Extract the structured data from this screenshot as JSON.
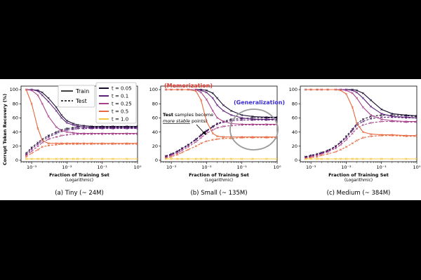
{
  "figure": {
    "ylabel": "Corrupt Token Recovery (%)",
    "legend_split": {
      "train": "Train",
      "test": "Test"
    },
    "legend_t": [
      "t = 0.05",
      "t = 0.1",
      "t = 0.25",
      "t = 0.5",
      "t = 1.0"
    ],
    "annotations": {
      "memorization": "(Memorization)",
      "generalization": "(Generalization)",
      "test_note_line1_bold": "Test",
      "test_note_line1_rest": " samples become",
      "test_note_line2_italic": "more stable",
      "test_note_line2_rest": " points!"
    }
  },
  "chart_data": [
    {
      "type": "line",
      "caption": "(a) Tiny (~ 24M)",
      "xlabel": "Fraction of Training Set",
      "xlabel_sub": "(Logarithmic)",
      "xscale": "log",
      "xlim": [
        0.0005,
        1
      ],
      "ylim": [
        -2,
        105
      ],
      "xtick_labels": [
        "10⁻³",
        "10⁻²",
        "10⁻¹",
        "10⁰"
      ],
      "ytick_labels": [
        "0",
        "20",
        "40",
        "60",
        "80",
        "100"
      ],
      "x": [
        0.0007,
        0.001,
        0.0015,
        0.002,
        0.003,
        0.005,
        0.007,
        0.01,
        0.015,
        0.02,
        0.03,
        0.05,
        0.1,
        0.2,
        0.5,
        1.0
      ],
      "series": [
        {
          "name": "t = 0.05",
          "split": "Train",
          "color": "#1a0b2e",
          "values": [
            100,
            100,
            99,
            96,
            88,
            75,
            64,
            56,
            52,
            50,
            49,
            48,
            48,
            48,
            48,
            48
          ]
        },
        {
          "name": "t = 0.05",
          "split": "Test",
          "color": "#1a0b2e",
          "values": [
            10,
            18,
            25,
            30,
            35,
            40,
            43,
            45,
            46,
            47,
            47,
            47,
            47,
            47,
            47,
            47
          ]
        },
        {
          "name": "t = 0.1",
          "split": "Train",
          "color": "#5c1f7a",
          "values": [
            100,
            100,
            98,
            92,
            83,
            70,
            60,
            53,
            50,
            48,
            47,
            46,
            46,
            46,
            46,
            46
          ]
        },
        {
          "name": "t = 0.1",
          "split": "Test",
          "color": "#5c1f7a",
          "values": [
            8,
            16,
            23,
            28,
            33,
            38,
            41,
            43,
            44,
            45,
            45,
            45,
            45,
            45,
            45,
            45
          ]
        },
        {
          "name": "t = 0.25",
          "split": "Train",
          "color": "#a8418a",
          "values": [
            100,
            99,
            92,
            80,
            62,
            47,
            42,
            40,
            39,
            38,
            38,
            38,
            38,
            38,
            38,
            38
          ]
        },
        {
          "name": "t = 0.25",
          "split": "Test",
          "color": "#a8418a",
          "values": [
            7,
            13,
            20,
            25,
            30,
            33,
            35,
            36,
            37,
            37,
            37,
            37,
            37,
            37,
            37,
            37
          ]
        },
        {
          "name": "t = 0.5",
          "split": "Train",
          "color": "#e8683f",
          "values": [
            100,
            80,
            45,
            28,
            24,
            24,
            24,
            24,
            24,
            24,
            24,
            24,
            24,
            24,
            24,
            24
          ]
        },
        {
          "name": "t = 0.5",
          "split": "Test",
          "color": "#e8683f",
          "values": [
            5,
            10,
            15,
            19,
            21,
            22,
            23,
            23,
            23,
            23,
            23,
            23,
            23,
            23,
            23,
            23
          ]
        },
        {
          "name": "t = 1.0",
          "split": "Train",
          "color": "#f5c842",
          "values": [
            2,
            2,
            2,
            2,
            2,
            2,
            2,
            2,
            2,
            2,
            2,
            2,
            2,
            2,
            2,
            2
          ]
        },
        {
          "name": "t = 1.0",
          "split": "Test",
          "color": "#f5c842",
          "values": [
            2,
            2,
            2,
            2,
            2,
            2,
            2,
            2,
            2,
            2,
            2,
            2,
            2,
            2,
            2,
            2
          ]
        }
      ]
    },
    {
      "type": "line",
      "caption": "(b) Small (~ 135M)",
      "xlabel": "Fraction of Training Set",
      "xlabel_sub": "(Logarithmic)",
      "xscale": "log",
      "xlim": [
        0.0005,
        1
      ],
      "ylim": [
        -2,
        105
      ],
      "xtick_labels": [
        "10⁻³",
        "10⁻²",
        "10⁻¹",
        "10⁰"
      ],
      "ytick_labels": [
        "0",
        "20",
        "40",
        "60",
        "80",
        "100"
      ],
      "x": [
        0.0007,
        0.001,
        0.0015,
        0.002,
        0.003,
        0.005,
        0.007,
        0.01,
        0.015,
        0.02,
        0.03,
        0.05,
        0.1,
        0.2,
        0.5,
        1.0
      ],
      "series": [
        {
          "name": "t = 0.05",
          "split": "Train",
          "color": "#1a0b2e",
          "values": [
            100,
            100,
            100,
            100,
            100,
            100,
            100,
            99,
            95,
            88,
            78,
            70,
            64,
            62,
            61,
            61
          ]
        },
        {
          "name": "t = 0.05",
          "split": "Test",
          "color": "#1a0b2e",
          "values": [
            6,
            9,
            13,
            17,
            22,
            30,
            36,
            42,
            48,
            52,
            55,
            58,
            59,
            60,
            60,
            60
          ]
        },
        {
          "name": "t = 0.1",
          "split": "Train",
          "color": "#5c1f7a",
          "values": [
            100,
            100,
            100,
            100,
            100,
            100,
            99,
            96,
            88,
            78,
            70,
            64,
            60,
            58,
            58,
            58
          ]
        },
        {
          "name": "t = 0.1",
          "split": "Test",
          "color": "#5c1f7a",
          "values": [
            5,
            8,
            12,
            16,
            21,
            29,
            35,
            41,
            47,
            51,
            54,
            56,
            57,
            57,
            57,
            57
          ]
        },
        {
          "name": "t = 0.25",
          "split": "Train",
          "color": "#a8418a",
          "values": [
            100,
            100,
            100,
            100,
            100,
            100,
            96,
            86,
            70,
            60,
            55,
            52,
            51,
            51,
            51,
            51
          ]
        },
        {
          "name": "t = 0.25",
          "split": "Test",
          "color": "#a8418a",
          "values": [
            4,
            7,
            10,
            14,
            19,
            26,
            32,
            38,
            43,
            46,
            48,
            49,
            50,
            50,
            50,
            50
          ]
        },
        {
          "name": "t = 0.5",
          "split": "Train",
          "color": "#e8683f",
          "values": [
            100,
            100,
            100,
            100,
            100,
            98,
            85,
            55,
            38,
            34,
            33,
            33,
            33,
            33,
            33,
            33
          ]
        },
        {
          "name": "t = 0.5",
          "split": "Test",
          "color": "#e8683f",
          "values": [
            3,
            5,
            8,
            11,
            15,
            20,
            24,
            27,
            29,
            30,
            31,
            31,
            32,
            32,
            32,
            32
          ]
        },
        {
          "name": "t = 1.0",
          "split": "Train",
          "color": "#f5c842",
          "values": [
            2,
            2,
            2,
            2,
            2,
            2,
            2,
            2,
            2,
            2,
            2,
            2,
            2,
            2,
            2,
            2
          ]
        },
        {
          "name": "t = 1.0",
          "split": "Test",
          "color": "#f5c842",
          "values": [
            2,
            2,
            2,
            2,
            2,
            2,
            2,
            2,
            2,
            2,
            2,
            2,
            2,
            2,
            2,
            2
          ]
        }
      ]
    },
    {
      "type": "line",
      "caption": "(c) Medium (~ 384M)",
      "xlabel": "Fraction of Training Set",
      "xlabel_sub": "(Logarithmic)",
      "xscale": "log",
      "xlim": [
        0.0005,
        1
      ],
      "ylim": [
        -2,
        105
      ],
      "xtick_labels": [
        "10⁻³",
        "10⁻²",
        "10⁻¹",
        "10⁰"
      ],
      "ytick_labels": [
        "0",
        "20",
        "40",
        "60",
        "80",
        "100"
      ],
      "x": [
        0.0007,
        0.001,
        0.0015,
        0.002,
        0.003,
        0.005,
        0.007,
        0.01,
        0.015,
        0.02,
        0.03,
        0.05,
        0.1,
        0.2,
        0.5,
        1.0
      ],
      "series": [
        {
          "name": "t = 0.05",
          "split": "Train",
          "color": "#1a0b2e",
          "values": [
            100,
            100,
            100,
            100,
            100,
            100,
            100,
            100,
            100,
            99,
            95,
            85,
            72,
            66,
            64,
            63
          ]
        },
        {
          "name": "t = 0.05",
          "split": "Test",
          "color": "#1a0b2e",
          "values": [
            5,
            7,
            9,
            11,
            14,
            20,
            26,
            34,
            44,
            52,
            58,
            62,
            64,
            64,
            63,
            62
          ]
        },
        {
          "name": "t = 0.1",
          "split": "Train",
          "color": "#5c1f7a",
          "values": [
            100,
            100,
            100,
            100,
            100,
            100,
            100,
            100,
            99,
            96,
            88,
            76,
            66,
            62,
            61,
            60
          ]
        },
        {
          "name": "t = 0.1",
          "split": "Test",
          "color": "#5c1f7a",
          "values": [
            4,
            6,
            8,
            10,
            13,
            19,
            25,
            32,
            42,
            50,
            55,
            59,
            61,
            61,
            60,
            60
          ]
        },
        {
          "name": "t = 0.25",
          "split": "Train",
          "color": "#a8418a",
          "values": [
            100,
            100,
            100,
            100,
            100,
            100,
            100,
            99,
            95,
            88,
            75,
            64,
            58,
            56,
            55,
            55
          ]
        },
        {
          "name": "t = 0.25",
          "split": "Test",
          "color": "#a8418a",
          "values": [
            3,
            5,
            7,
            9,
            12,
            17,
            22,
            29,
            38,
            45,
            50,
            53,
            55,
            55,
            54,
            54
          ]
        },
        {
          "name": "t = 0.5",
          "split": "Train",
          "color": "#e8683f",
          "values": [
            100,
            100,
            100,
            100,
            100,
            100,
            99,
            94,
            75,
            52,
            40,
            37,
            36,
            36,
            35,
            35
          ]
        },
        {
          "name": "t = 0.5",
          "split": "Test",
          "color": "#e8683f",
          "values": [
            2,
            4,
            5,
            7,
            9,
            12,
            15,
            19,
            24,
            28,
            32,
            34,
            35,
            35,
            34,
            34
          ]
        },
        {
          "name": "t = 1.0",
          "split": "Train",
          "color": "#f5c842",
          "values": [
            2,
            2,
            2,
            2,
            2,
            2,
            2,
            2,
            2,
            2,
            2,
            2,
            2,
            2,
            2,
            2
          ]
        },
        {
          "name": "t = 1.0",
          "split": "Test",
          "color": "#f5c842",
          "values": [
            2,
            2,
            2,
            2,
            2,
            2,
            2,
            2,
            2,
            2,
            2,
            2,
            2,
            2,
            2,
            2
          ]
        }
      ]
    }
  ]
}
